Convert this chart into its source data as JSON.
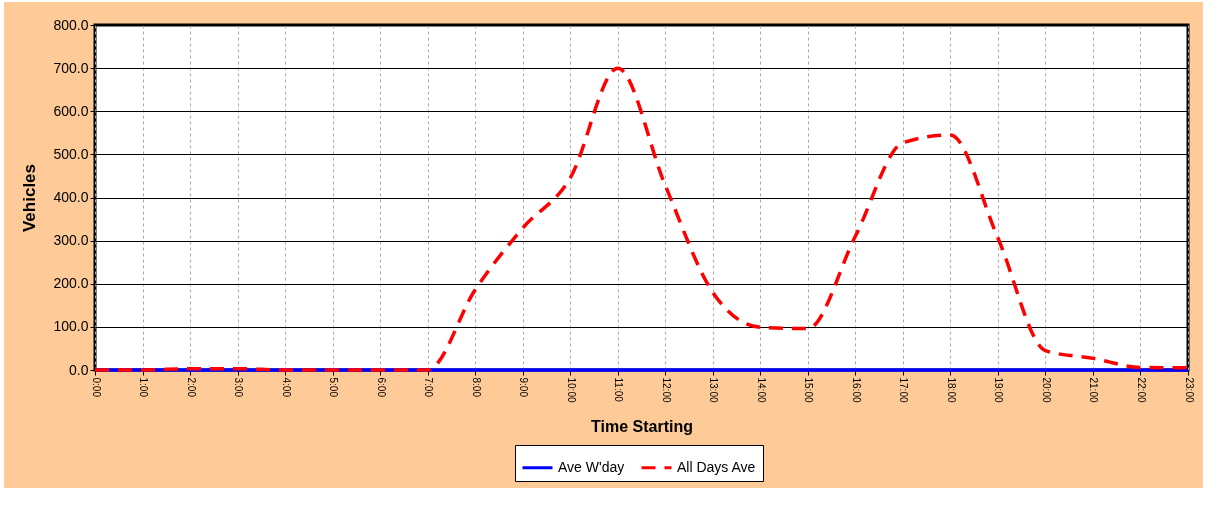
{
  "chart_data": {
    "type": "line",
    "xlabel": "Time Starting",
    "ylabel": "Vehicles",
    "categories": [
      "0:00",
      "1:00",
      "2:00",
      "3:00",
      "4:00",
      "5:00",
      "6:00",
      "7:00",
      "8:00",
      "9:00",
      "10:00",
      "11:00",
      "12:00",
      "13:00",
      "14:00",
      "15:00",
      "16:00",
      "17:00",
      "18:00",
      "19:00",
      "20:00",
      "21:00",
      "22:00",
      "23:00"
    ],
    "series": [
      {
        "name": "Ave W'day",
        "color": "#0000ff",
        "line_style": "solid",
        "values": [
          0,
          0,
          0,
          0,
          0,
          0,
          0,
          0,
          0,
          0,
          0,
          0,
          0,
          0,
          0,
          0,
          0,
          0,
          0,
          0,
          0,
          0,
          0,
          0
        ]
      },
      {
        "name": "All Days Ave",
        "color": "#ff0000",
        "line_style": "dashed",
        "values": [
          0,
          0,
          3,
          3,
          0,
          0,
          0,
          0,
          186,
          329,
          445,
          700,
          428,
          180,
          99,
          96,
          310,
          527,
          545,
          306,
          45,
          27,
          6,
          5
        ]
      }
    ],
    "ylim": [
      0,
      800
    ],
    "yticks": [
      {
        "value": 0,
        "label": "0.0"
      },
      {
        "value": 100,
        "label": "100.0"
      },
      {
        "value": 200,
        "label": "200.0"
      },
      {
        "value": 300,
        "label": "300.0"
      },
      {
        "value": 400,
        "label": "400.0"
      },
      {
        "value": 500,
        "label": "500.0"
      },
      {
        "value": 600,
        "label": "600.0"
      },
      {
        "value": 700,
        "label": "700.0"
      },
      {
        "value": 800,
        "label": "800.0"
      }
    ],
    "grid": true,
    "legend": "bottom"
  }
}
